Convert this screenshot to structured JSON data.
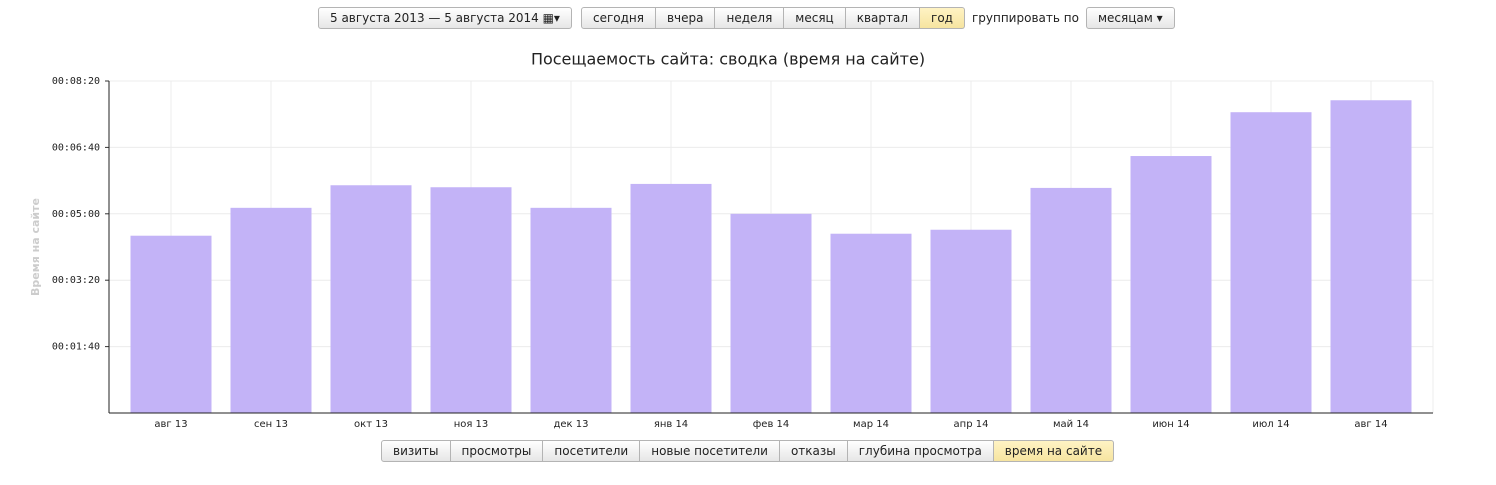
{
  "controls": {
    "date_range": "5 августа 2013 — 5 августа 2014",
    "periods": [
      "сегодня",
      "вчера",
      "неделя",
      "месяц",
      "квартал",
      "год"
    ],
    "active_period": 5,
    "group_label": "группировать по",
    "group_value": "месяцам"
  },
  "chart_data": {
    "type": "bar",
    "title": "Посещаемость сайта: сводка (время на сайте)",
    "y_label": "Время на сайте",
    "categories": [
      "авг 13",
      "сен 13",
      "окт 13",
      "ноя 13",
      "дек 13",
      "янв 14",
      "фев 14",
      "мар 14",
      "апр 14",
      "май 14",
      "июн 14",
      "июл 14",
      "авг 14"
    ],
    "values": [
      267,
      309,
      343,
      340,
      309,
      345,
      300,
      270,
      276,
      339,
      387,
      453,
      471
    ],
    "color": "#c3b3f7",
    "ylim": [
      0,
      500
    ],
    "yticks": [
      {
        "value": 100,
        "label": "00:01:40"
      },
      {
        "value": 200,
        "label": "00:03:20"
      },
      {
        "value": 300,
        "label": "00:05:00"
      },
      {
        "value": 400,
        "label": "00:06:40"
      },
      {
        "value": 500,
        "label": "00:08:20"
      }
    ],
    "grid": true
  },
  "metric_tabs": {
    "items": [
      "визиты",
      "просмотры",
      "посетители",
      "новые посетители",
      "отказы",
      "глубина просмотра",
      "время на сайте"
    ],
    "active": 6
  }
}
